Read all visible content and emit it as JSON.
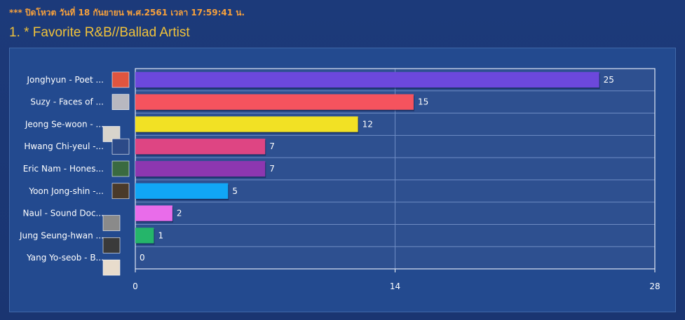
{
  "notice": "*** ปิดโหวต วันที่ 18 กันยายน พ.ศ.2561 เวลา 17:59:41 น.",
  "poll_title": "1. * Favorite R&B//Ballad Artist",
  "chart_data": {
    "type": "bar",
    "orientation": "horizontal",
    "title": "",
    "xlabel": "",
    "ylabel": "",
    "xlim": [
      0,
      28
    ],
    "ticks": [
      "0",
      "14",
      "28"
    ],
    "grid": true,
    "categories": [
      "Jonghyun - Poet ...",
      "Suzy - Faces of ...",
      "Jeong Se-woon - ...",
      "Hwang Chi-yeul -...",
      "Eric Nam - Hones...",
      "Yoon Jong-shin -...",
      "Naul - Sound Doc...",
      "Jung Seung-hwan ...",
      "Yang Yo-seob - B..."
    ],
    "values": [
      25,
      15,
      12,
      7,
      7,
      5,
      2,
      1,
      0
    ],
    "colors": [
      "#6c48dc",
      "#f5535e",
      "#f2e124",
      "#de4583",
      "#8d37b0",
      "#11a6f5",
      "#e96cea",
      "#25b56a",
      "#888888"
    ],
    "thumb_colors": [
      "#e0553f",
      "#b8b8c0",
      "#d8d4cc",
      "#2c4a88",
      "#3a6a40",
      "#4a3a2a",
      "#8a8a8a",
      "#3a3a3a",
      "#e8dccc"
    ]
  }
}
